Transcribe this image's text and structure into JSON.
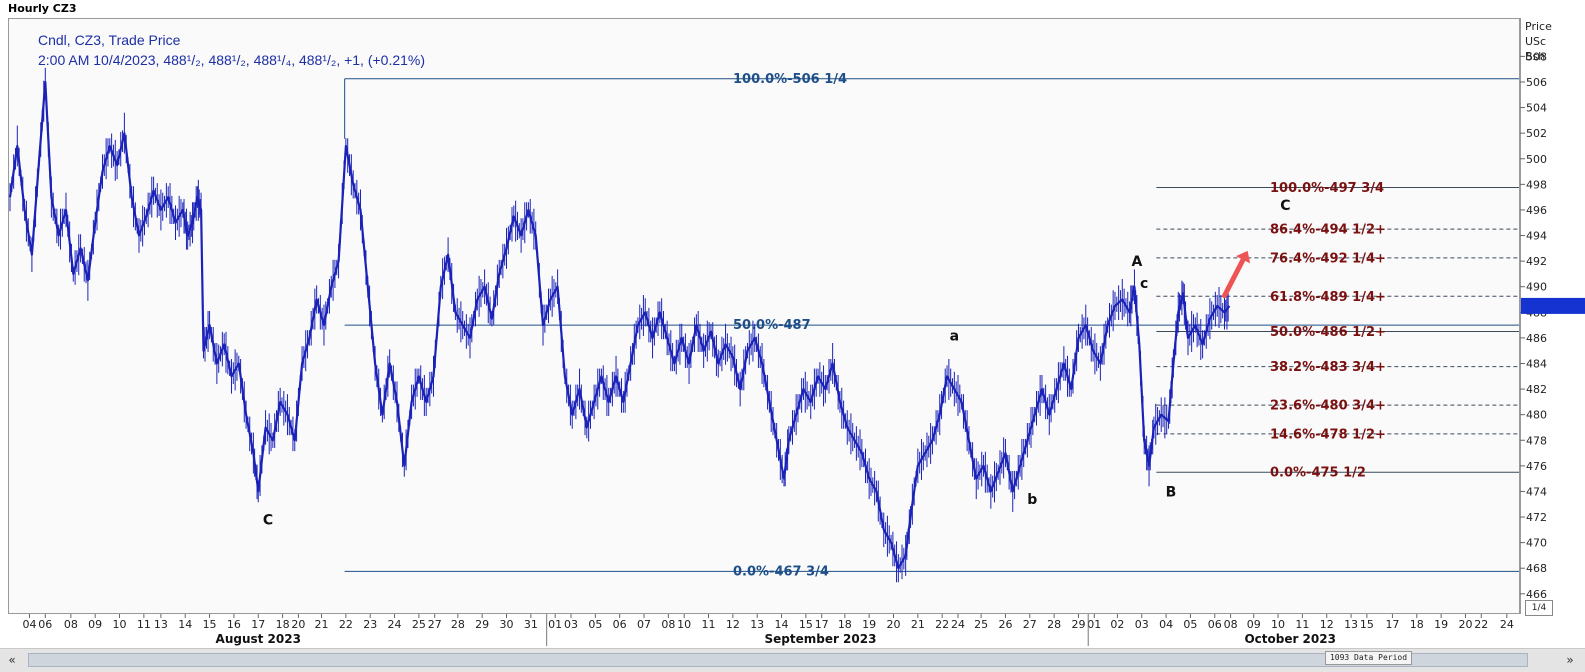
{
  "window": {
    "title": "Hourly CZ3",
    "data_period_label": "1093 Data Period",
    "zoom_label": "1/4",
    "scroll_left_label": "«",
    "scroll_right_label": "»"
  },
  "legend": {
    "line1": "Cndl, CZ3, Trade Price",
    "line2": "2:00 AM 10/4/2023, 488¹/₂, 488¹/₂, 488¹/₄, 488¹/₂, +1, (+0.21%)"
  },
  "axis_units": {
    "line1": "Price",
    "line2": "USc",
    "line3": "Bsh"
  },
  "colors": {
    "price": "#1a22b8",
    "fib_left": "#1e4f88",
    "fib_right": "#7a1010",
    "current_price_marker": "#1533d0",
    "arrow": "#ef5454"
  },
  "chart_data": {
    "type": "line",
    "title": "",
    "ylim": [
      464.5,
      511
    ],
    "y_ticks": [
      466,
      468,
      470,
      472,
      474,
      476,
      478,
      480,
      482,
      484,
      486,
      488,
      490,
      492,
      494,
      496,
      498,
      500,
      502,
      504,
      506,
      508
    ],
    "current_price": 488.5,
    "x_ticks": [
      {
        "label": "04",
        "x": 0.8
      },
      {
        "label": "06",
        "x": 1.45
      },
      {
        "label": "08",
        "x": 2.5
      },
      {
        "label": "09",
        "x": 3.5
      },
      {
        "label": "10",
        "x": 4.5
      },
      {
        "label": "11",
        "x": 5.5
      },
      {
        "label": "13",
        "x": 6.2
      },
      {
        "label": "14",
        "x": 7.2
      },
      {
        "label": "15",
        "x": 8.2
      },
      {
        "label": "16",
        "x": 9.2
      },
      {
        "label": "17",
        "x": 10.2
      },
      {
        "label": "18",
        "x": 11.2
      },
      {
        "label": "20",
        "x": 11.85
      },
      {
        "label": "21",
        "x": 12.8
      },
      {
        "label": "22",
        "x": 13.8
      },
      {
        "label": "23",
        "x": 14.8
      },
      {
        "label": "24",
        "x": 15.8
      },
      {
        "label": "25",
        "x": 16.8
      },
      {
        "label": "27",
        "x": 17.45
      },
      {
        "label": "28",
        "x": 18.4
      },
      {
        "label": "29",
        "x": 19.4
      },
      {
        "label": "30",
        "x": 20.4
      },
      {
        "label": "31",
        "x": 21.4
      },
      {
        "label": "01",
        "x": 22.4
      },
      {
        "label": "03",
        "x": 23.05
      },
      {
        "label": "05",
        "x": 24.05
      },
      {
        "label": "06",
        "x": 25.05
      },
      {
        "label": "07",
        "x": 26.05
      },
      {
        "label": "08",
        "x": 27.05
      },
      {
        "label": "10",
        "x": 27.7
      },
      {
        "label": "11",
        "x": 28.7
      },
      {
        "label": "12",
        "x": 29.7
      },
      {
        "label": "13",
        "x": 30.7
      },
      {
        "label": "14",
        "x": 31.7
      },
      {
        "label": "15",
        "x": 32.7
      },
      {
        "label": "17",
        "x": 33.35
      },
      {
        "label": "18",
        "x": 34.3
      },
      {
        "label": "19",
        "x": 35.3
      },
      {
        "label": "20",
        "x": 36.3
      },
      {
        "label": "21",
        "x": 37.3
      },
      {
        "label": "22",
        "x": 38.3
      },
      {
        "label": "24",
        "x": 38.95
      },
      {
        "label": "25",
        "x": 39.9
      },
      {
        "label": "26",
        "x": 40.9
      },
      {
        "label": "27",
        "x": 41.9
      },
      {
        "label": "28",
        "x": 42.9
      },
      {
        "label": "29",
        "x": 43.9
      },
      {
        "label": "01",
        "x": 44.55
      },
      {
        "label": "02",
        "x": 45.5
      },
      {
        "label": "03",
        "x": 46.5
      },
      {
        "label": "04",
        "x": 47.5
      },
      {
        "label": "05",
        "x": 48.5
      },
      {
        "label": "06",
        "x": 49.5
      },
      {
        "label": "08",
        "x": 50.15
      },
      {
        "label": "09",
        "x": 51.1
      },
      {
        "label": "10",
        "x": 52.1
      },
      {
        "label": "11",
        "x": 53.1
      },
      {
        "label": "12",
        "x": 54.1
      },
      {
        "label": "13",
        "x": 55.1
      },
      {
        "label": "15",
        "x": 55.75
      },
      {
        "label": "17",
        "x": 56.8
      },
      {
        "label": "18",
        "x": 57.8
      },
      {
        "label": "19",
        "x": 58.8
      },
      {
        "label": "20",
        "x": 59.8
      },
      {
        "label": "22",
        "x": 60.45
      },
      {
        "label": "24",
        "x": 61.5
      }
    ],
    "month_labels": [
      {
        "label": "August 2023",
        "x": 10.2
      },
      {
        "label": "September 2023",
        "x": 33.3
      },
      {
        "label": "October 2023",
        "x": 52.6
      }
    ],
    "month_separators": [
      22.05,
      44.3
    ],
    "xlim": [
      0,
      62
    ],
    "series": [
      {
        "points": [
          [
            0.0,
            497.0
          ],
          [
            0.3,
            501.0
          ],
          [
            0.6,
            496.0
          ],
          [
            0.9,
            492.5
          ],
          [
            1.2,
            500.0
          ],
          [
            1.45,
            506.0
          ],
          [
            1.7,
            497.0
          ],
          [
            2.0,
            494.0
          ],
          [
            2.3,
            496.0
          ],
          [
            2.6,
            491.0
          ],
          [
            2.9,
            493.0
          ],
          [
            3.2,
            490.5
          ],
          [
            3.5,
            495.0
          ],
          [
            3.8,
            499.0
          ],
          [
            4.1,
            501.0
          ],
          [
            4.4,
            499.5
          ],
          [
            4.7,
            502.0
          ],
          [
            5.0,
            497.0
          ],
          [
            5.3,
            494.0
          ],
          [
            5.6,
            495.5
          ],
          [
            5.9,
            497.5
          ],
          [
            6.2,
            496.0
          ],
          [
            6.5,
            497.0
          ],
          [
            6.8,
            495.0
          ],
          [
            7.1,
            496.0
          ],
          [
            7.3,
            494.0
          ],
          [
            7.5,
            495.0
          ],
          [
            7.7,
            497.0
          ],
          [
            7.85,
            496.0
          ],
          [
            7.95,
            485.0
          ],
          [
            8.2,
            487.0
          ],
          [
            8.5,
            484.0
          ],
          [
            8.8,
            485.5
          ],
          [
            9.1,
            483.0
          ],
          [
            9.4,
            484.0
          ],
          [
            9.7,
            480.0
          ],
          [
            10.0,
            477.0
          ],
          [
            10.2,
            474.0
          ],
          [
            10.5,
            479.0
          ],
          [
            10.8,
            478.0
          ],
          [
            11.1,
            481.0
          ],
          [
            11.4,
            480.0
          ],
          [
            11.7,
            478.0
          ],
          [
            12.0,
            484.0
          ],
          [
            12.3,
            486.0
          ],
          [
            12.6,
            489.0
          ],
          [
            12.9,
            487.0
          ],
          [
            13.2,
            490.0
          ],
          [
            13.5,
            492.0
          ],
          [
            13.8,
            501.0
          ],
          [
            14.1,
            498.0
          ],
          [
            14.4,
            496.0
          ],
          [
            14.7,
            490.0
          ],
          [
            15.0,
            484.0
          ],
          [
            15.3,
            480.0
          ],
          [
            15.6,
            484.0
          ],
          [
            15.9,
            481.0
          ],
          [
            16.2,
            476.0
          ],
          [
            16.5,
            481.0
          ],
          [
            16.8,
            483.0
          ],
          [
            17.1,
            481.0
          ],
          [
            17.4,
            483.0
          ],
          [
            17.7,
            490.0
          ],
          [
            18.0,
            492.5
          ],
          [
            18.3,
            488.0
          ],
          [
            18.6,
            487.0
          ],
          [
            18.9,
            486.0
          ],
          [
            19.2,
            489.0
          ],
          [
            19.5,
            490.0
          ],
          [
            19.8,
            487.5
          ],
          [
            20.1,
            491.0
          ],
          [
            20.4,
            493.0
          ],
          [
            20.7,
            495.5
          ],
          [
            21.0,
            494.0
          ],
          [
            21.3,
            496.0
          ],
          [
            21.6,
            494.0
          ],
          [
            21.9,
            487.0
          ],
          [
            22.2,
            489.0
          ],
          [
            22.5,
            490.0
          ],
          [
            22.8,
            483.0
          ],
          [
            23.1,
            480.0
          ],
          [
            23.4,
            482.0
          ],
          [
            23.7,
            479.0
          ],
          [
            24.0,
            481.0
          ],
          [
            24.3,
            483.0
          ],
          [
            24.6,
            481.0
          ],
          [
            24.9,
            483.0
          ],
          [
            25.2,
            481.0
          ],
          [
            25.5,
            484.0
          ],
          [
            25.8,
            487.0
          ],
          [
            26.1,
            488.0
          ],
          [
            26.4,
            486.0
          ],
          [
            26.7,
            488.0
          ],
          [
            27.0,
            486.0
          ],
          [
            27.3,
            484.0
          ],
          [
            27.6,
            486.0
          ],
          [
            27.9,
            484.0
          ],
          [
            28.2,
            487.0
          ],
          [
            28.5,
            485.0
          ],
          [
            28.8,
            486.5
          ],
          [
            29.1,
            484.0
          ],
          [
            29.4,
            485.5
          ],
          [
            29.7,
            484.5
          ],
          [
            30.0,
            482.0
          ],
          [
            30.3,
            485.0
          ],
          [
            30.6,
            486.0
          ],
          [
            30.9,
            484.0
          ],
          [
            31.2,
            481.0
          ],
          [
            31.5,
            478.0
          ],
          [
            31.8,
            475.0
          ],
          [
            32.0,
            478.0
          ],
          [
            32.3,
            480.0
          ],
          [
            32.6,
            482.0
          ],
          [
            32.9,
            481.0
          ],
          [
            33.2,
            483.0
          ],
          [
            33.5,
            482.0
          ],
          [
            33.8,
            484.0
          ],
          [
            34.1,
            481.0
          ],
          [
            34.4,
            479.0
          ],
          [
            34.7,
            478.0
          ],
          [
            35.0,
            477.0
          ],
          [
            35.3,
            475.0
          ],
          [
            35.6,
            474.0
          ],
          [
            35.9,
            471.0
          ],
          [
            36.2,
            470.0
          ],
          [
            36.5,
            468.0
          ],
          [
            36.8,
            469.0
          ],
          [
            37.0,
            472.0
          ],
          [
            37.3,
            476.0
          ],
          [
            37.6,
            477.0
          ],
          [
            37.9,
            478.0
          ],
          [
            38.2,
            480.0
          ],
          [
            38.5,
            483.0
          ],
          [
            38.8,
            482.0
          ],
          [
            39.1,
            481.0
          ],
          [
            39.4,
            478.0
          ],
          [
            39.7,
            475.0
          ],
          [
            40.0,
            476.0
          ],
          [
            40.3,
            474.0
          ],
          [
            40.6,
            475.5
          ],
          [
            40.9,
            477.0
          ],
          [
            41.2,
            474.0
          ],
          [
            41.5,
            476.0
          ],
          [
            41.8,
            478.0
          ],
          [
            42.1,
            480.0
          ],
          [
            42.4,
            482.0
          ],
          [
            42.7,
            480.0
          ],
          [
            43.0,
            482.0
          ],
          [
            43.3,
            484.0
          ],
          [
            43.6,
            482.0
          ],
          [
            43.9,
            486.0
          ],
          [
            44.2,
            487.0
          ],
          [
            44.5,
            485.0
          ],
          [
            44.8,
            484.0
          ],
          [
            45.1,
            487.0
          ],
          [
            45.4,
            488.5
          ],
          [
            45.7,
            489.0
          ],
          [
            46.0,
            488.0
          ],
          [
            46.2,
            490.0
          ],
          [
            46.4,
            485.5
          ],
          [
            46.6,
            478.0
          ],
          [
            46.8,
            476.0
          ],
          [
            47.0,
            479.0
          ],
          [
            47.3,
            480.0
          ],
          [
            47.6,
            479.5
          ],
          [
            47.8,
            484.0
          ],
          [
            48.0,
            488.0
          ],
          [
            48.2,
            489.5
          ],
          [
            48.4,
            486.0
          ],
          [
            48.7,
            487.0
          ],
          [
            49.0,
            485.5
          ],
          [
            49.3,
            487.5
          ],
          [
            49.6,
            488.5
          ],
          [
            49.9,
            488.0
          ],
          [
            50.1,
            488.5
          ]
        ]
      }
    ],
    "fib_left": {
      "x_start": 13.75,
      "levels": [
        {
          "price": 506.25,
          "label": "100.0%-506 1/4"
        },
        {
          "price": 487.0,
          "label": "50.0%-487"
        },
        {
          "price": 467.75,
          "label": "0.0%-467 3/4"
        }
      ]
    },
    "fib_right": {
      "x_start": 47.1,
      "levels": [
        {
          "price": 497.75,
          "label": "100.0%-497 3/4",
          "solid": true
        },
        {
          "price": 494.5,
          "label": "86.4%-494 1/2+",
          "solid": false
        },
        {
          "price": 492.25,
          "label": "76.4%-492 1/4+",
          "solid": false
        },
        {
          "price": 489.25,
          "label": "61.8%-489 1/4+",
          "solid": false
        },
        {
          "price": 486.5,
          "label": "50.0%-486 1/2+",
          "solid": true
        },
        {
          "price": 483.75,
          "label": "38.2%-483 3/4+",
          "solid": false
        },
        {
          "price": 480.75,
          "label": "23.6%-480 3/4+",
          "solid": false
        },
        {
          "price": 478.5,
          "label": "14.6%-478 1/2+",
          "solid": false
        },
        {
          "price": 475.5,
          "label": "0.0%-475 1/2",
          "solid": true
        }
      ]
    },
    "annotations": [
      {
        "text": "C",
        "x": 10.6,
        "y": 471.4
      },
      {
        "text": "a",
        "x": 38.8,
        "y": 485.8
      },
      {
        "text": "b",
        "x": 42.0,
        "y": 473.0
      },
      {
        "text": "A",
        "x": 46.3,
        "y": 491.6
      },
      {
        "text": "c",
        "x": 46.6,
        "y": 489.9
      },
      {
        "text": "B",
        "x": 47.7,
        "y": 473.6
      },
      {
        "text": "C",
        "x": 52.4,
        "y": 496.0
      }
    ],
    "arrow": {
      "x1": 49.9,
      "y1": 489.3,
      "x2": 50.85,
      "y2": 492.8
    }
  }
}
